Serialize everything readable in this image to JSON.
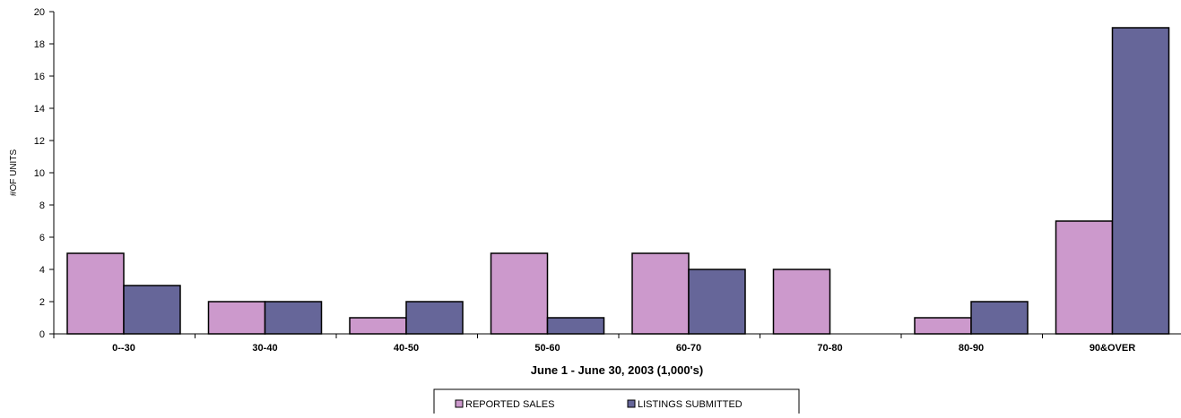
{
  "chart_data": {
    "type": "bar",
    "title": "",
    "xlabel": "June 1 - June 30, 2003 (1,000's)",
    "ylabel": "#OF UNITS",
    "ylim": [
      0,
      20
    ],
    "yticks": [
      0,
      2,
      4,
      6,
      8,
      10,
      12,
      14,
      16,
      18,
      20
    ],
    "grid": false,
    "legend_position": "bottom",
    "categories": [
      "0--30",
      "30-40",
      "40-50",
      "50-60",
      "60-70",
      "70-80",
      "80-90",
      "90&OVER"
    ],
    "series": [
      {
        "name": "REPORTED SALES",
        "color": "#cc99cc",
        "values": [
          5,
          2,
          1,
          5,
          5,
          4,
          1,
          7
        ]
      },
      {
        "name": "LISTINGS SUBMITTED",
        "color": "#666699",
        "values": [
          3,
          2,
          2,
          1,
          4,
          0,
          2,
          19
        ]
      }
    ]
  }
}
